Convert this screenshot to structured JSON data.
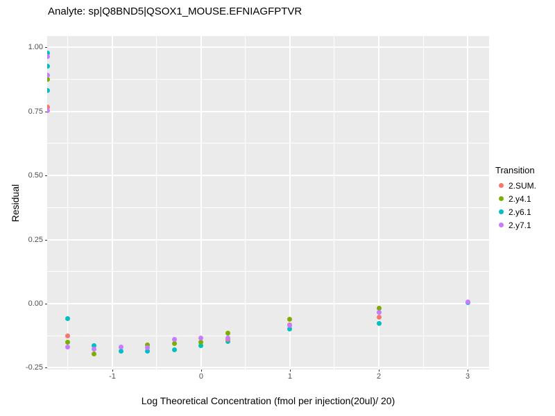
{
  "chart_data": {
    "type": "scatter",
    "title": "Analyte: sp|Q8BND5|QSOX1_MOUSE.EFNIAGFPTVR",
    "xlabel": "Log Theoretical Concentration (fmol per injection(20ul)/ 20)",
    "ylabel": "Residual",
    "xlim": [
      -1.734,
      3.242
    ],
    "ylim": [
      -0.257,
      1.044
    ],
    "x_ticks": [
      {
        "v": -1,
        "label": "-1"
      },
      {
        "v": 0,
        "label": "0"
      },
      {
        "v": 1,
        "label": "1"
      },
      {
        "v": 2,
        "label": "2"
      },
      {
        "v": 3,
        "label": "3"
      }
    ],
    "y_ticks": [
      {
        "v": 1.0,
        "label": "1.00"
      },
      {
        "v": 0.75,
        "label": "0.75"
      },
      {
        "v": 0.5,
        "label": "0.50"
      },
      {
        "v": 0.25,
        "label": "0.25"
      },
      {
        "v": 0.0,
        "label": "0.00"
      },
      {
        "v": -0.25,
        "label": "-0.25"
      }
    ],
    "x_minor_ticks": [
      -1.5,
      -0.5,
      0.5,
      1.5,
      2.5
    ],
    "y_minor_ticks": [
      0.875,
      0.625,
      0.375,
      0.125,
      -0.125
    ],
    "grid": "major+minor",
    "panel_background": "#EBEBEB",
    "gridline_color": "#FFFFFF",
    "tick_label_color": "#4D4D4D",
    "legend": {
      "title": "Transition",
      "position": "right"
    },
    "point_format": "[x, y, draw_order]",
    "series": [
      {
        "name": "2.SUM.",
        "color": "#F8766D",
        "points": [
          [
            -1.73,
            0.768,
            7
          ],
          [
            -1.505,
            -0.127,
            10
          ],
          [
            0.301,
            -0.14,
            28
          ],
          [
            1,
            -0.082,
            31
          ],
          [
            2,
            -0.052,
            36
          ]
        ]
      },
      {
        "name": "2.y4.1",
        "color": "#7CAE00",
        "points": [
          [
            -1.73,
            0.876,
            4
          ],
          [
            -1.505,
            -0.149,
            11
          ],
          [
            -1.204,
            -0.195,
            13
          ],
          [
            -0.602,
            -0.16,
            18
          ],
          [
            -0.301,
            -0.156,
            22
          ],
          [
            0,
            -0.151,
            25
          ],
          [
            0.301,
            -0.116,
            30
          ],
          [
            1,
            -0.06,
            34
          ],
          [
            2,
            -0.018,
            37
          ]
        ]
      },
      {
        "name": "2.y6.1",
        "color": "#00BFC4",
        "points": [
          [
            -1.73,
            0.978,
            1
          ],
          [
            -1.73,
            0.925,
            3
          ],
          [
            -1.73,
            0.832,
            6
          ],
          [
            -1.505,
            -0.059,
            9
          ],
          [
            -1.204,
            -0.163,
            14
          ],
          [
            -0.903,
            -0.184,
            16
          ],
          [
            -0.602,
            -0.186,
            19
          ],
          [
            -0.301,
            -0.18,
            21
          ],
          [
            0,
            -0.163,
            24
          ],
          [
            0.301,
            -0.148,
            27
          ],
          [
            1,
            -0.1,
            32
          ],
          [
            2,
            -0.078,
            35
          ],
          [
            3,
            0.004,
            39
          ]
        ]
      },
      {
        "name": "2.y7.1",
        "color": "#C77CFF",
        "points": [
          [
            -1.73,
            0.965,
            2
          ],
          [
            -1.73,
            0.89,
            5
          ],
          [
            -1.73,
            0.752,
            8
          ],
          [
            -1.505,
            -0.168,
            12
          ],
          [
            -1.204,
            -0.176,
            15
          ],
          [
            -0.903,
            -0.168,
            17
          ],
          [
            -0.602,
            -0.173,
            20
          ],
          [
            -0.301,
            -0.14,
            23
          ],
          [
            0,
            -0.135,
            26
          ],
          [
            0.301,
            -0.135,
            29
          ],
          [
            1,
            -0.085,
            33
          ],
          [
            2,
            -0.033,
            38
          ],
          [
            3,
            0.008,
            40
          ]
        ]
      }
    ]
  }
}
